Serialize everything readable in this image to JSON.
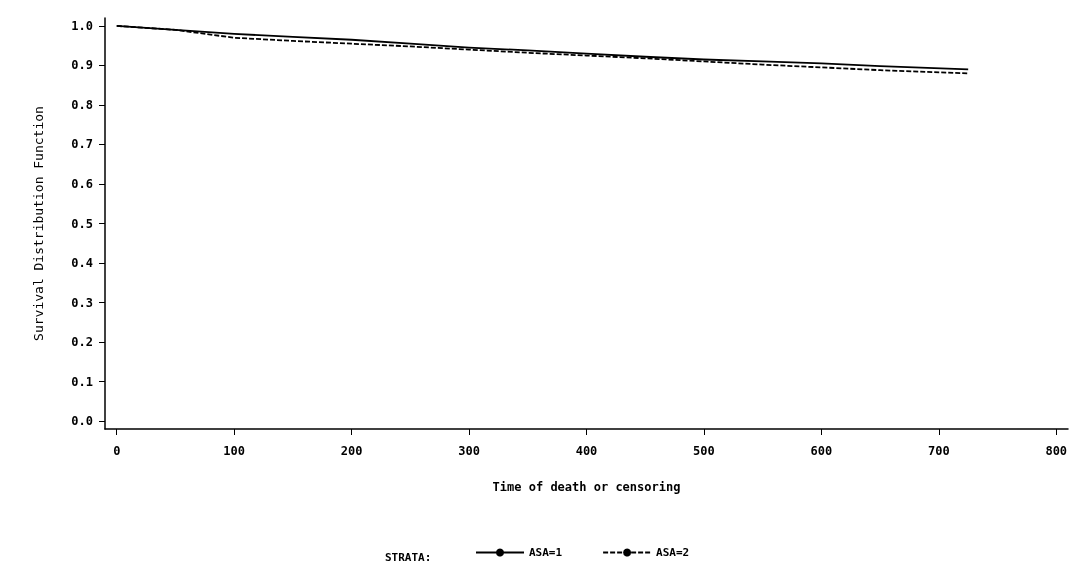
{
  "chart_data": {
    "type": "line",
    "xlabel": "Time of death or censoring",
    "ylabel": "Survival Distribution Function",
    "legend_title": "STRATA:",
    "legend": "bottom",
    "grid": false,
    "marker": "none",
    "x": [
      0,
      50,
      100,
      150,
      200,
      250,
      300,
      350,
      400,
      450,
      500,
      550,
      600,
      650,
      725
    ],
    "series": [
      {
        "name": "ASA=1",
        "color": "#000000",
        "line_style": "solid",
        "values": [
          1.0,
          0.99,
          0.98,
          0.972,
          0.965,
          0.955,
          0.945,
          0.938,
          0.93,
          0.922,
          0.915,
          0.91,
          0.905,
          0.898,
          0.89
        ]
      },
      {
        "name": "ASA=2",
        "color": "#000000",
        "line_style": "dashed",
        "values": [
          1.0,
          0.99,
          0.97,
          0.962,
          0.955,
          0.948,
          0.94,
          0.932,
          0.925,
          0.918,
          0.91,
          0.902,
          0.895,
          0.888,
          0.88
        ]
      }
    ],
    "xlim": [
      -10,
      810
    ],
    "xticks": [
      0,
      100,
      200,
      300,
      400,
      500,
      600,
      700,
      800
    ],
    "ylim": [
      -0.02,
      1.02
    ],
    "yticks": [
      {
        "value": 0,
        "label": "0.0"
      },
      0.1,
      0.2,
      0.3,
      0.4,
      0.5,
      0.6,
      0.7,
      0.8,
      0.9,
      {
        "value": 1,
        "label": "1.0"
      }
    ]
  }
}
